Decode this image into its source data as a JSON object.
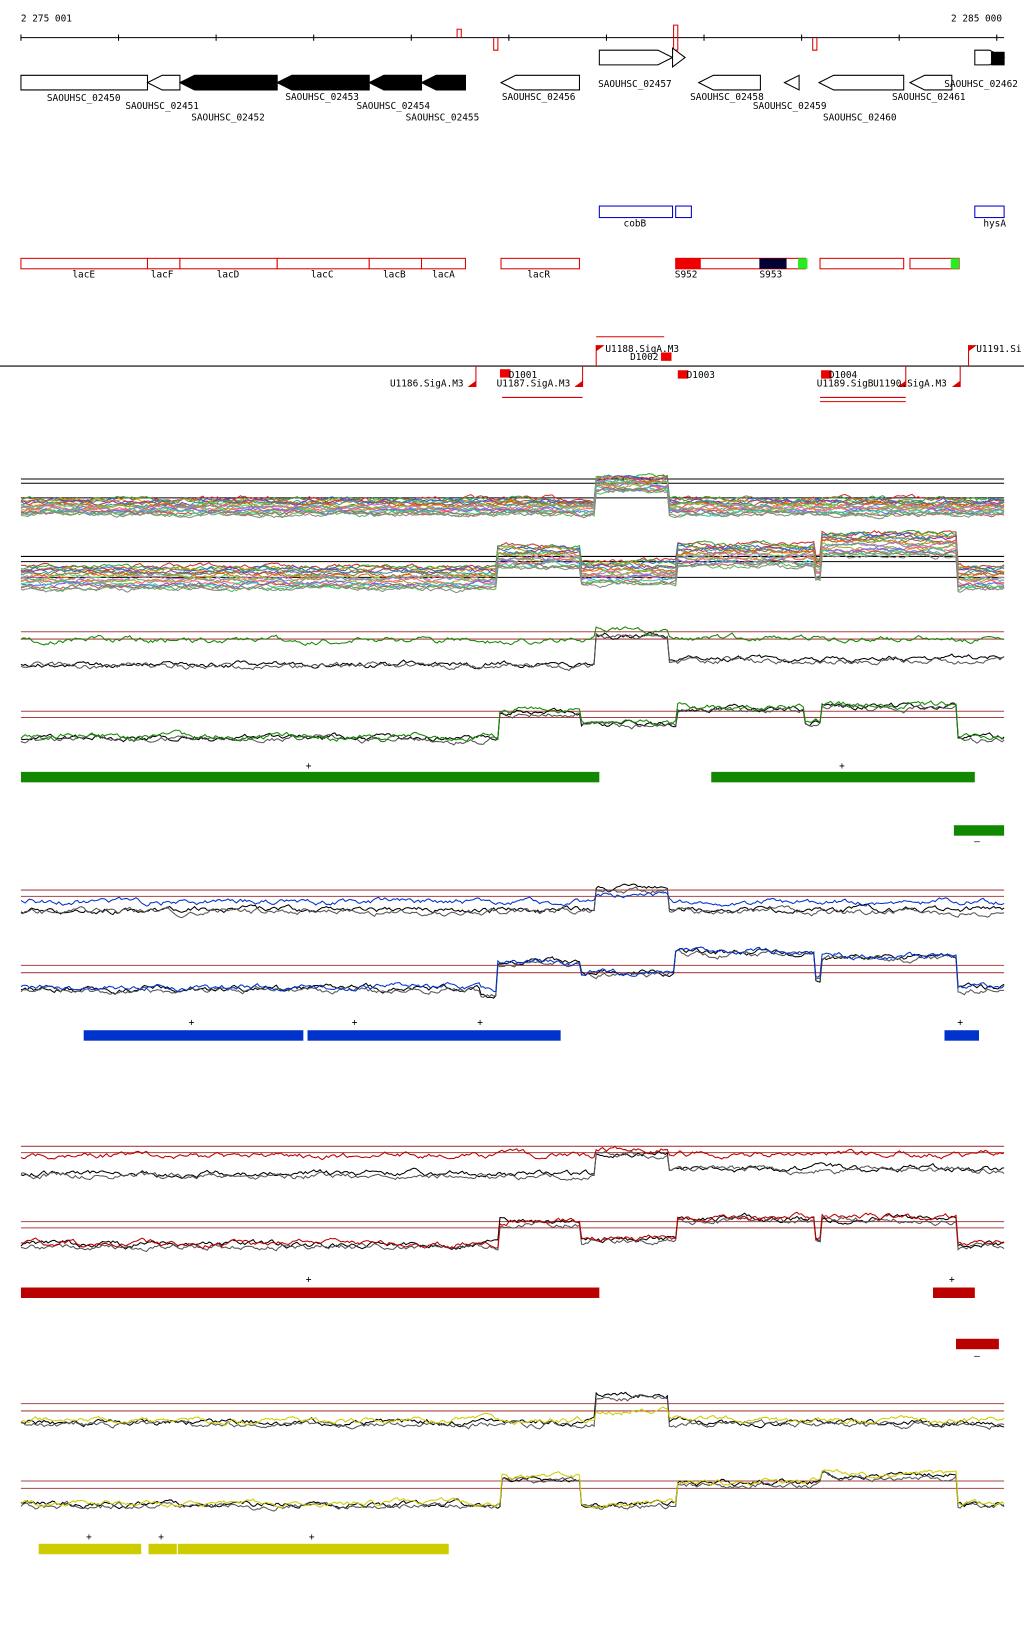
{
  "ruler": {
    "start": "2 275 001",
    "end": "2 285 000"
  },
  "genes": [
    "SAOUHSC_02450",
    "SAOUHSC_02451",
    "SAOUHSC_02452",
    "SAOUHSC_02453",
    "SAOUHSC_02454",
    "SAOUHSC_02455",
    "SAOUHSC_02456",
    "SAOUHSC_02457",
    "SAOUHSC_02458",
    "SAOUHSC_02459",
    "SAOUHSC_02460",
    "SAOUHSC_02461",
    "SAOUHSC_02462"
  ],
  "features": [
    "cobB",
    "hysA",
    "lacE",
    "lacF",
    "lacD",
    "lacC",
    "lacB",
    "lacA",
    "lacR",
    "S952",
    "S953"
  ],
  "promoters": [
    "U1186.SigA.M3",
    "U1187.SigA.M3",
    "U1188.SigA.M3",
    "D1001",
    "D1002",
    "D1003",
    "D1004",
    "U1189.SigB",
    "U1190.SigA.M3",
    "U1191.Si"
  ],
  "tracks": [
    {
      "signs": [
        "+",
        "+",
        "–"
      ]
    },
    {
      "signs": [
        "+",
        "+",
        "+",
        "+"
      ]
    },
    {
      "signs": [
        "+",
        "+",
        "–"
      ]
    },
    {
      "signs": [
        "+",
        "+",
        "+"
      ]
    }
  ]
}
